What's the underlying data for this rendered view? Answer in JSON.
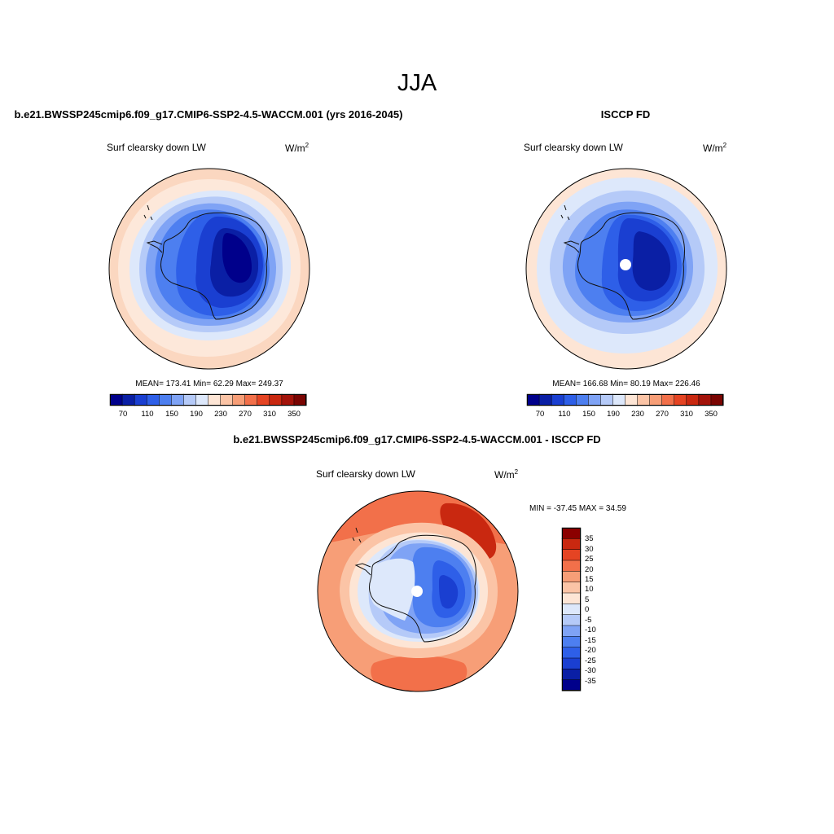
{
  "figure": {
    "title": "JJA"
  },
  "palette": {
    "model_obs": [
      "#00008b",
      "#0a1fa5",
      "#1a3fd1",
      "#2e5fe8",
      "#4d7ff0",
      "#7fa3f5",
      "#b5caf8",
      "#dde8fb",
      "#fde5d5",
      "#fbc4a6",
      "#f79e77",
      "#f2704a",
      "#e54423",
      "#c92810",
      "#a3130a",
      "#7a0502"
    ],
    "difference": [
      "#00008b",
      "#0a1fa5",
      "#1a3fd1",
      "#2e5fe8",
      "#4d7ff0",
      "#7fa3f5",
      "#b5caf8",
      "#dde8fb",
      "#fde5d5",
      "#fbc4a6",
      "#f79e77",
      "#f2704a",
      "#e54423",
      "#c92810",
      "#8b0000"
    ]
  },
  "panels": [
    {
      "title": "b.e21.BWSSP245cmip6.f09_g17.CMIP6-SSP2-4.5-WACCM.001 (yrs 2016-2045)",
      "variable": "Surf clearsky down LW",
      "units": "W/m",
      "units_exp": "2",
      "stats_text": "MEAN= 173.41  Min=  62.29  Max= 249.37",
      "mean": 173.41,
      "min": 62.29,
      "max": 249.37,
      "colorbar_labels": [
        "70",
        "110",
        "150",
        "190",
        "230",
        "270",
        "310",
        "350"
      ]
    },
    {
      "title": "ISCCP FD",
      "variable": "Surf clearsky down LW",
      "units": "W/m",
      "units_exp": "2",
      "stats_text": "MEAN= 166.68  Min=  80.19  Max= 226.46",
      "mean": 166.68,
      "min": 80.19,
      "max": 226.46,
      "colorbar_labels": [
        "70",
        "110",
        "150",
        "190",
        "230",
        "270",
        "310",
        "350"
      ]
    },
    {
      "title": "b.e21.BWSSP245cmip6.f09_g17.CMIP6-SSP2-4.5-WACCM.001 - ISCCP FD",
      "variable": "Surf clearsky down LW",
      "units": "W/m",
      "units_exp": "2",
      "stats_text": "MIN = -37.45 MAX =  34.59",
      "min": -37.45,
      "max": 34.59,
      "colorbar_labels": [
        "35",
        "30",
        "25",
        "20",
        "15",
        "10",
        "5",
        "0",
        "-5",
        "-10",
        "-15",
        "-20",
        "-25",
        "-30",
        "-35"
      ]
    }
  ],
  "chart_data": [
    {
      "type": "heatmap",
      "title": "b.e21.BWSSP245cmip6.f09_g17.CMIP6-SSP2-4.5-WACCM.001 (yrs 2016-2045)",
      "variable": "Surf clearsky down LW",
      "units": "W/m2",
      "projection": "south-polar-stereographic",
      "contour_levels": [
        70,
        90,
        110,
        130,
        150,
        170,
        190,
        210,
        230,
        250,
        270,
        290,
        310,
        330,
        350
      ],
      "colorbar_tick_labels": [
        70,
        110,
        150,
        190,
        230,
        270,
        310,
        350
      ],
      "stats": {
        "mean": 173.41,
        "min": 62.29,
        "max": 249.37
      }
    },
    {
      "type": "heatmap",
      "title": "ISCCP FD",
      "variable": "Surf clearsky down LW",
      "units": "W/m2",
      "projection": "south-polar-stereographic",
      "contour_levels": [
        70,
        90,
        110,
        130,
        150,
        170,
        190,
        210,
        230,
        250,
        270,
        290,
        310,
        330,
        350
      ],
      "colorbar_tick_labels": [
        70,
        110,
        150,
        190,
        230,
        270,
        310,
        350
      ],
      "stats": {
        "mean": 166.68,
        "min": 80.19,
        "max": 226.46
      }
    },
    {
      "type": "heatmap",
      "title": "b.e21.BWSSP245cmip6.f09_g17.CMIP6-SSP2-4.5-WACCM.001 - ISCCP FD",
      "variable": "Surf clearsky down LW",
      "units": "W/m2",
      "projection": "south-polar-stereographic",
      "contour_levels": [
        -35,
        -30,
        -25,
        -20,
        -15,
        -10,
        -5,
        0,
        5,
        10,
        15,
        20,
        25,
        30,
        35
      ],
      "stats": {
        "min": -37.45,
        "max": 34.59
      }
    }
  ]
}
